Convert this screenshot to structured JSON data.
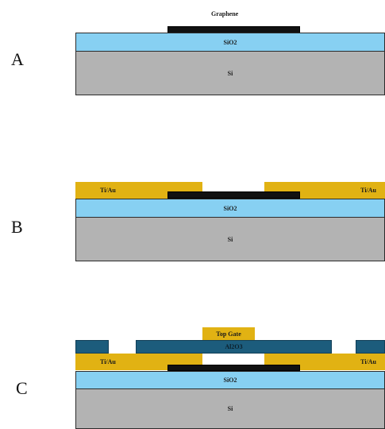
{
  "panels": [
    {
      "letter": "A",
      "labels": {
        "graphene": "Graphene",
        "sio2": "SiO2",
        "si": "Si"
      }
    },
    {
      "letter": "B",
      "labels": {
        "tiau_left": "Ti/Au",
        "tiau_right": "Ti/Au",
        "sio2": "SiO2",
        "si": "Si"
      }
    },
    {
      "letter": "C",
      "labels": {
        "top_gate": "Top Gate",
        "al2o3": "Al2O3",
        "tiau_left": "Ti/Au",
        "tiau_right": "Ti/Au",
        "sio2": "SiO2",
        "si": "Si"
      }
    }
  ],
  "colors": {
    "si": "#b3b3b3",
    "sio2": "#87d0f2",
    "graphene": "#111111",
    "tiau": "#e1b213",
    "al2o3": "#1c5c7c",
    "top_gate": "#e1b213"
  }
}
